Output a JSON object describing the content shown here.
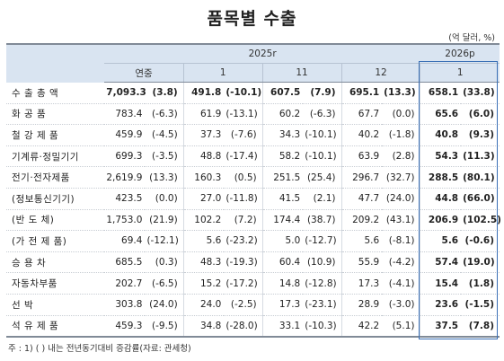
{
  "title": "품목별 수출",
  "unit": "(억 달러, %)",
  "header": {
    "year_2025": "2025r",
    "year_2026": "2026p",
    "col_annual": "연중",
    "col_1": "1",
    "col_11": "11",
    "col_12": "12",
    "col_2026_1": "1"
  },
  "rows": [
    {
      "name": "수 출 총 액",
      "v1": "7,093.3",
      "p1": "(3.8)",
      "v2": "491.8",
      "p2": "(-10.1)",
      "v3": "607.5",
      "p3": "(7.9)",
      "v4": "695.1",
      "p4": "(13.3)",
      "v5": "658.1",
      "p5": "(33.8)"
    },
    {
      "name": "화 공 품",
      "v1": "783.4",
      "p1": "(-6.3)",
      "v2": "61.9",
      "p2": "(-13.1)",
      "v3": "60.2",
      "p3": "(-6.3)",
      "v4": "67.7",
      "p4": "(0.0)",
      "v5": "65.6",
      "p5": "(6.0)"
    },
    {
      "name": "철 강 제 품",
      "v1": "459.9",
      "p1": "(-4.5)",
      "v2": "37.3",
      "p2": "(-7.6)",
      "v3": "34.3",
      "p3": "(-10.1)",
      "v4": "40.2",
      "p4": "(-1.8)",
      "v5": "40.8",
      "p5": "(9.3)"
    },
    {
      "name": "기계류·정밀기기",
      "v1": "699.3",
      "p1": "(-3.5)",
      "v2": "48.8",
      "p2": "(-17.4)",
      "v3": "58.2",
      "p3": "(-10.1)",
      "v4": "63.9",
      "p4": "(2.8)",
      "v5": "54.3",
      "p5": "(11.3)"
    },
    {
      "name": "전기·전자제품",
      "v1": "2,619.9",
      "p1": "(13.3)",
      "v2": "160.3",
      "p2": "(0.5)",
      "v3": "251.5",
      "p3": "(25.4)",
      "v4": "296.7",
      "p4": "(32.7)",
      "v5": "288.5",
      "p5": "(80.1)"
    },
    {
      "name": "(정보통신기기)",
      "v1": "423.5",
      "p1": "(0.0)",
      "v2": "27.0",
      "p2": "(-11.8)",
      "v3": "41.5",
      "p3": "(2.1)",
      "v4": "47.7",
      "p4": "(24.0)",
      "v5": "44.8",
      "p5": "(66.0)"
    },
    {
      "name": "(반 도 체)",
      "v1": "1,753.0",
      "p1": "(21.9)",
      "v2": "102.2",
      "p2": "(7.2)",
      "v3": "174.4",
      "p3": "(38.7)",
      "v4": "209.2",
      "p4": "(43.1)",
      "v5": "206.9",
      "p5": "(102.5)"
    },
    {
      "name": "(가 전 제 품)",
      "v1": "69.4",
      "p1": "(-12.1)",
      "v2": "5.6",
      "p2": "(-23.2)",
      "v3": "5.0",
      "p3": "(-12.7)",
      "v4": "5.6",
      "p4": "(-8.1)",
      "v5": "5.6",
      "p5": "(-0.6)"
    },
    {
      "name": "승 용 차",
      "v1": "685.5",
      "p1": "(0.3)",
      "v2": "48.3",
      "p2": "(-19.3)",
      "v3": "60.4",
      "p3": "(10.9)",
      "v4": "55.9",
      "p4": "(-4.2)",
      "v5": "57.4",
      "p5": "(19.0)"
    },
    {
      "name": "자동차부품",
      "v1": "202.7",
      "p1": "(-6.5)",
      "v2": "15.2",
      "p2": "(-17.2)",
      "v3": "14.8",
      "p3": "(-12.8)",
      "v4": "17.3",
      "p4": "(-4.1)",
      "v5": "15.4",
      "p5": "(1.8)"
    },
    {
      "name": "선 박",
      "v1": "303.8",
      "p1": "(24.0)",
      "v2": "24.0",
      "p2": "(-2.5)",
      "v3": "17.3",
      "p3": "(-23.1)",
      "v4": "28.9",
      "p4": "(-3.0)",
      "v5": "23.6",
      "p5": "(-1.5)"
    },
    {
      "name": "석 유 제 품",
      "v1": "459.3",
      "p1": "(-9.5)",
      "v2": "34.8",
      "p2": "(-28.0)",
      "v3": "33.1",
      "p3": "(-10.3)",
      "v4": "42.2",
      "p4": "(5.1)",
      "v5": "37.5",
      "p5": "(7.8)"
    }
  ],
  "note": "주 : 1) ( ) 내는 전년동기대비 증감률(자료: 관세청)",
  "colors": {
    "header_bg": "#d9e4f1",
    "highlight_border": "#3a6fb5"
  }
}
